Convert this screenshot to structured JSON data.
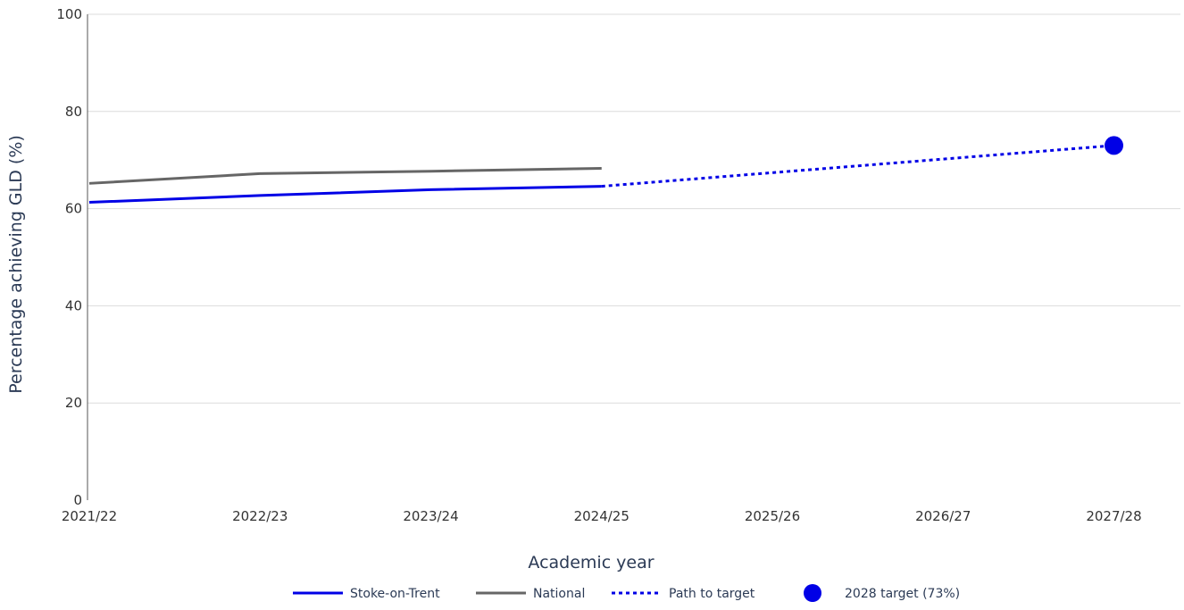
{
  "chart_data": {
    "type": "line",
    "title": "",
    "xlabel": "Academic year",
    "ylabel": "Percentage achieving GLD (%)",
    "ylim": [
      0,
      100
    ],
    "yticks": [
      0,
      20,
      40,
      60,
      80,
      100
    ],
    "categories": [
      "2021/22",
      "2022/23",
      "2023/24",
      "2024/25",
      "2025/26",
      "2026/27",
      "2027/28"
    ],
    "grid": true,
    "legend_position": "bottom",
    "series": [
      {
        "name": "Stoke-on-Trent",
        "color": "#0000e6",
        "style": "solid",
        "points": [
          {
            "x": "2021/22",
            "y": 61.3
          },
          {
            "x": "2022/23",
            "y": 62.7
          },
          {
            "x": "2023/24",
            "y": 63.9
          },
          {
            "x": "2024/25",
            "y": 64.6
          }
        ]
      },
      {
        "name": "National",
        "color": "#666666",
        "style": "solid",
        "points": [
          {
            "x": "2021/22",
            "y": 65.2
          },
          {
            "x": "2022/23",
            "y": 67.2
          },
          {
            "x": "2023/24",
            "y": 67.7
          },
          {
            "x": "2024/25",
            "y": 68.3
          }
        ]
      },
      {
        "name": "Path to target",
        "color": "#0000e6",
        "style": "dotted",
        "points": [
          {
            "x": "2024/25",
            "y": 64.6
          },
          {
            "x": "2027/28",
            "y": 73
          }
        ]
      },
      {
        "name": "2028 target (73%)",
        "color": "#0000e6",
        "style": "marker",
        "points": [
          {
            "x": "2027/28",
            "y": 73
          }
        ]
      }
    ]
  }
}
